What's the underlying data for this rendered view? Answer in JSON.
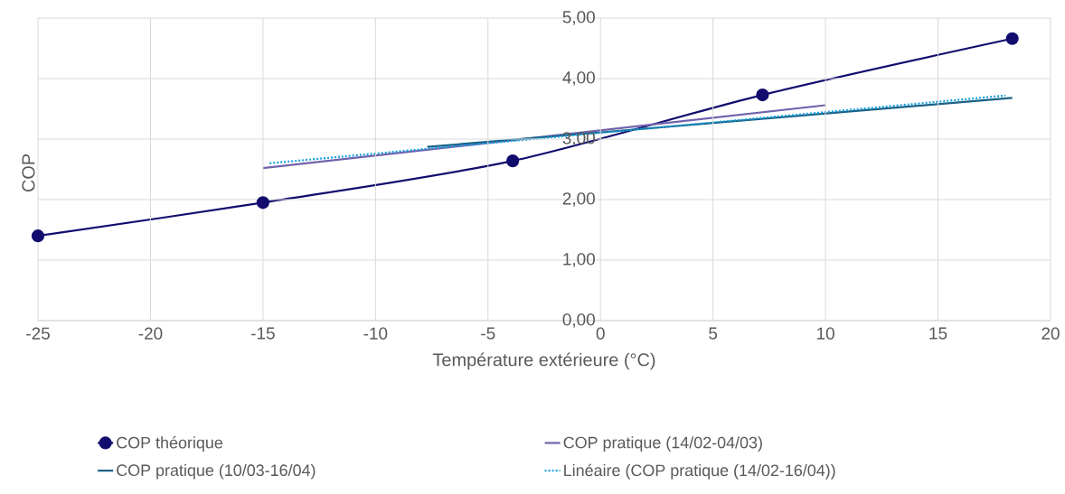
{
  "chart_data": {
    "type": "line",
    "xlabel": "Température extérieure (°C)",
    "ylabel": "COP",
    "xlim": [
      -25,
      20
    ],
    "ylim": [
      0,
      5
    ],
    "xticks": [
      -25,
      -20,
      -15,
      -10,
      -5,
      0,
      5,
      10,
      15,
      20
    ],
    "yticks": [
      {
        "value": 0,
        "label": "0,00"
      },
      {
        "value": 1,
        "label": "1,00"
      },
      {
        "value": 2,
        "label": "2,00"
      },
      {
        "value": 3,
        "label": "3,00"
      },
      {
        "value": 4,
        "label": "4,00"
      },
      {
        "value": 5,
        "label": "5,00"
      }
    ],
    "grid": true,
    "legend": "bottom",
    "series": [
      {
        "name": "COP théorique",
        "color": "#120c6e",
        "marker": "circle",
        "line_style": "solid",
        "x": [
          -25,
          -15,
          -3.9,
          7.2,
          18.3
        ],
        "values": [
          1.4,
          1.95,
          2.64,
          3.73,
          4.66
        ]
      },
      {
        "name": "COP pratique (14/02-04/03)",
        "color": "#7262ac",
        "marker": "none",
        "line_style": "solid",
        "x": [
          -15,
          10
        ],
        "values": [
          2.52,
          3.56
        ]
      },
      {
        "name": "COP pratique (10/03-16/04)",
        "color": "#1a6185",
        "marker": "none",
        "line_style": "solid",
        "x": [
          -7.7,
          18.3
        ],
        "values": [
          2.87,
          3.68
        ]
      },
      {
        "name": "Linéaire (COP pratique (14/02-16/04))",
        "color": "#16a0e0",
        "marker": "none",
        "line_style": "dotted",
        "x": [
          -14.7,
          18
        ],
        "values": [
          2.6,
          3.72
        ]
      }
    ]
  }
}
